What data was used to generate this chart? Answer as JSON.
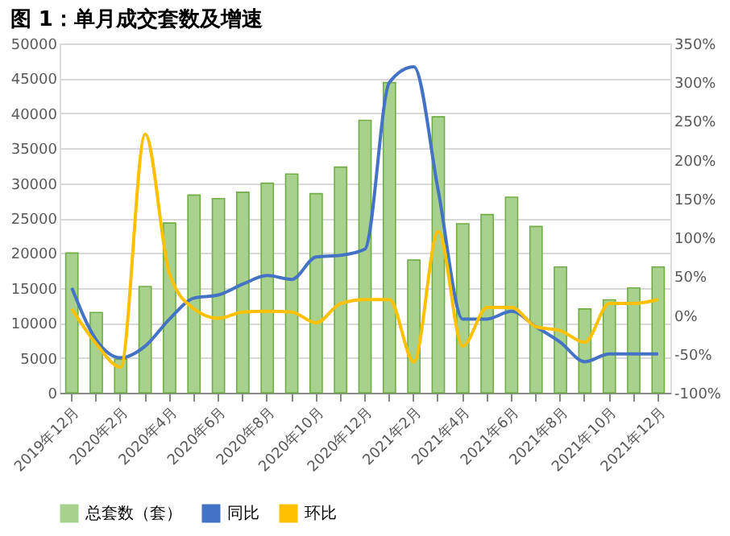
{
  "chart_data": {
    "type": "bar",
    "title": "图 1：单月成交套数及增速",
    "categories": [
      "2019年12月",
      null,
      "2020年2月",
      null,
      "2020年4月",
      null,
      "2020年6月",
      null,
      "2020年8月",
      null,
      "2020年10月",
      null,
      "2020年12月",
      null,
      "2021年2月",
      null,
      "2021年4月",
      null,
      "2021年6月",
      null,
      "2021年8月",
      null,
      "2021年10月",
      null,
      "2021年12月"
    ],
    "series": [
      {
        "name": "总套数（套）",
        "color": "#a9d18e",
        "values": [
          20000,
          11500,
          4800,
          15200,
          24300,
          28300,
          27800,
          28700,
          30000,
          31300,
          28500,
          32300,
          39000,
          44400,
          19000,
          39500,
          24200,
          25500,
          28000,
          23800,
          18000,
          12000,
          13300,
          15000,
          18000
        ]
      },
      {
        "name": "同比",
        "type": "line",
        "axis": "y2",
        "color": "#4472c4",
        "values": [
          35,
          -32,
          -55,
          -40,
          -5,
          22,
          26,
          40,
          51,
          46,
          75,
          77,
          85,
          300,
          320,
          160,
          -5,
          -5,
          5,
          -15,
          -35,
          -60,
          -50,
          -50,
          -50
        ]
      },
      {
        "name": "环比",
        "type": "line",
        "axis": "y2",
        "color": "#ffc000",
        "values": [
          8,
          -37,
          -67,
          233,
          53,
          8,
          -4,
          4,
          5,
          4,
          -10,
          15,
          20,
          20,
          -60,
          108,
          -40,
          10,
          10,
          -15,
          -20,
          -35,
          15,
          15,
          20
        ]
      }
    ],
    "ylim": [
      0,
      50000
    ],
    "yticks": [
      0,
      5000,
      10000,
      15000,
      20000,
      25000,
      30000,
      35000,
      40000,
      45000,
      50000
    ],
    "y2lim": [
      -100,
      350
    ],
    "y2ticks": [
      {
        "value": -100,
        "label": "-100%"
      },
      {
        "value": -50,
        "label": "-50%"
      },
      {
        "value": 0,
        "label": "0%"
      },
      {
        "value": 50,
        "label": "50%"
      },
      {
        "value": 100,
        "label": "100%"
      },
      {
        "value": 150,
        "label": "150%"
      },
      {
        "value": 200,
        "label": "200%"
      },
      {
        "value": 250,
        "label": "250%"
      },
      {
        "value": 300,
        "label": "300%"
      },
      {
        "value": 350,
        "label": "350%"
      }
    ],
    "grid": "y",
    "legend": "bottom",
    "marker": "none",
    "line_style": "solid"
  }
}
